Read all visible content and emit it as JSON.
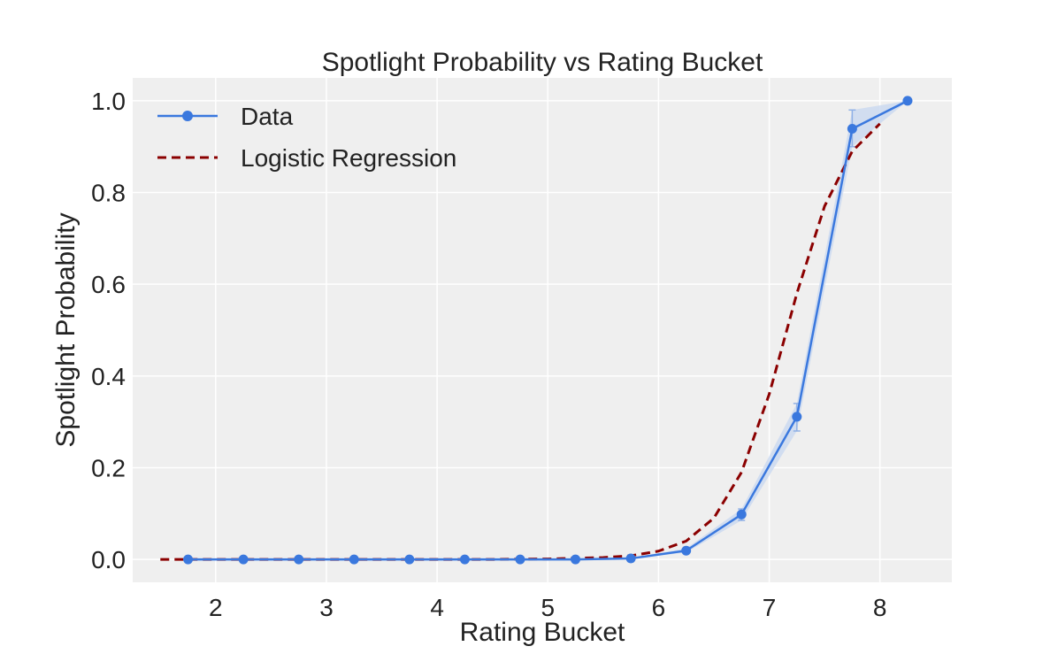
{
  "chart_data": {
    "type": "line",
    "title": "Spotlight Probability vs Rating Bucket",
    "xlabel": "Rating Bucket",
    "ylabel": "Spotlight Probability",
    "xlim": [
      1.25,
      8.65
    ],
    "ylim": [
      -0.05,
      1.05
    ],
    "xticks": [
      2,
      3,
      4,
      5,
      6,
      7,
      8
    ],
    "xtick_labels": [
      "2",
      "3",
      "4",
      "5",
      "6",
      "7",
      "8"
    ],
    "yticks": [
      0.0,
      0.2,
      0.4,
      0.6,
      0.8,
      1.0
    ],
    "ytick_labels": [
      "0.0",
      "0.2",
      "0.4",
      "0.6",
      "0.8",
      "1.0"
    ],
    "grid": true,
    "legend_position": "top-left",
    "colors": {
      "background": "#efefef",
      "grid": "#ffffff",
      "data_line": "#3a78de",
      "data_band": "#c9d8f0",
      "regression_line": "#8b0000"
    },
    "series": [
      {
        "name": "Data",
        "style": "solid-with-markers",
        "x": [
          1.75,
          2.25,
          2.75,
          3.25,
          3.75,
          4.25,
          4.75,
          5.25,
          5.75,
          6.25,
          6.75,
          7.25,
          7.75,
          8.25
        ],
        "y": [
          0.0,
          0.0,
          0.0,
          0.0,
          0.0,
          0.0,
          0.0,
          0.0,
          0.002,
          0.019,
          0.098,
          0.311,
          0.939,
          1.0
        ],
        "y_lower": [
          0.0,
          0.0,
          0.0,
          0.0,
          0.0,
          0.0,
          0.0,
          0.0,
          0.001,
          0.015,
          0.085,
          0.28,
          0.9,
          1.0
        ],
        "y_upper": [
          0.0,
          0.0,
          0.0,
          0.0,
          0.0,
          0.0,
          0.0,
          0.0,
          0.003,
          0.024,
          0.11,
          0.34,
          0.98,
          1.0
        ]
      },
      {
        "name": "Logistic Regression",
        "style": "dashed",
        "x": [
          1.5,
          2.0,
          2.5,
          3.0,
          3.5,
          4.0,
          4.5,
          5.0,
          5.5,
          5.75,
          6.0,
          6.25,
          6.5,
          6.75,
          7.0,
          7.25,
          7.5,
          7.75,
          8.0
        ],
        "y": [
          0.0,
          0.0,
          0.0,
          0.0,
          0.0,
          0.0,
          0.0,
          0.001,
          0.004,
          0.008,
          0.018,
          0.04,
          0.09,
          0.19,
          0.36,
          0.58,
          0.77,
          0.89,
          0.95
        ]
      }
    ]
  }
}
